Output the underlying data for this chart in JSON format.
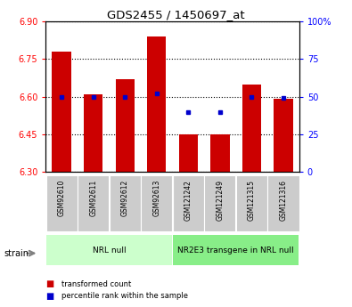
{
  "title": "GDS2455 / 1450697_at",
  "samples": [
    "GSM92610",
    "GSM92611",
    "GSM92612",
    "GSM92613",
    "GSM121242",
    "GSM121249",
    "GSM121315",
    "GSM121316"
  ],
  "red_values": [
    6.78,
    6.61,
    6.67,
    6.84,
    6.45,
    6.45,
    6.65,
    6.59
  ],
  "blue_values": [
    50,
    50,
    50,
    52,
    40,
    40,
    50,
    49
  ],
  "ylim": [
    6.3,
    6.9
  ],
  "yticks": [
    6.3,
    6.45,
    6.6,
    6.75,
    6.9
  ],
  "right_ylim": [
    0,
    100
  ],
  "right_yticks": [
    0,
    25,
    50,
    75,
    100
  ],
  "right_yticklabels": [
    "0",
    "25",
    "50",
    "75",
    "100%"
  ],
  "groups": [
    {
      "label": "NRL null",
      "start": 0,
      "end": 4,
      "color": "#ccffcc"
    },
    {
      "label": "NR2E3 transgene in NRL null",
      "start": 4,
      "end": 8,
      "color": "#88ee88"
    }
  ],
  "bar_color": "#cc0000",
  "dot_color": "#0000cc",
  "bar_bottom": 6.3,
  "bar_width": 0.6,
  "strain_label": "strain",
  "legend_items": [
    {
      "label": "transformed count",
      "color": "#cc0000"
    },
    {
      "label": "percentile rank within the sample",
      "color": "#0000cc"
    }
  ]
}
